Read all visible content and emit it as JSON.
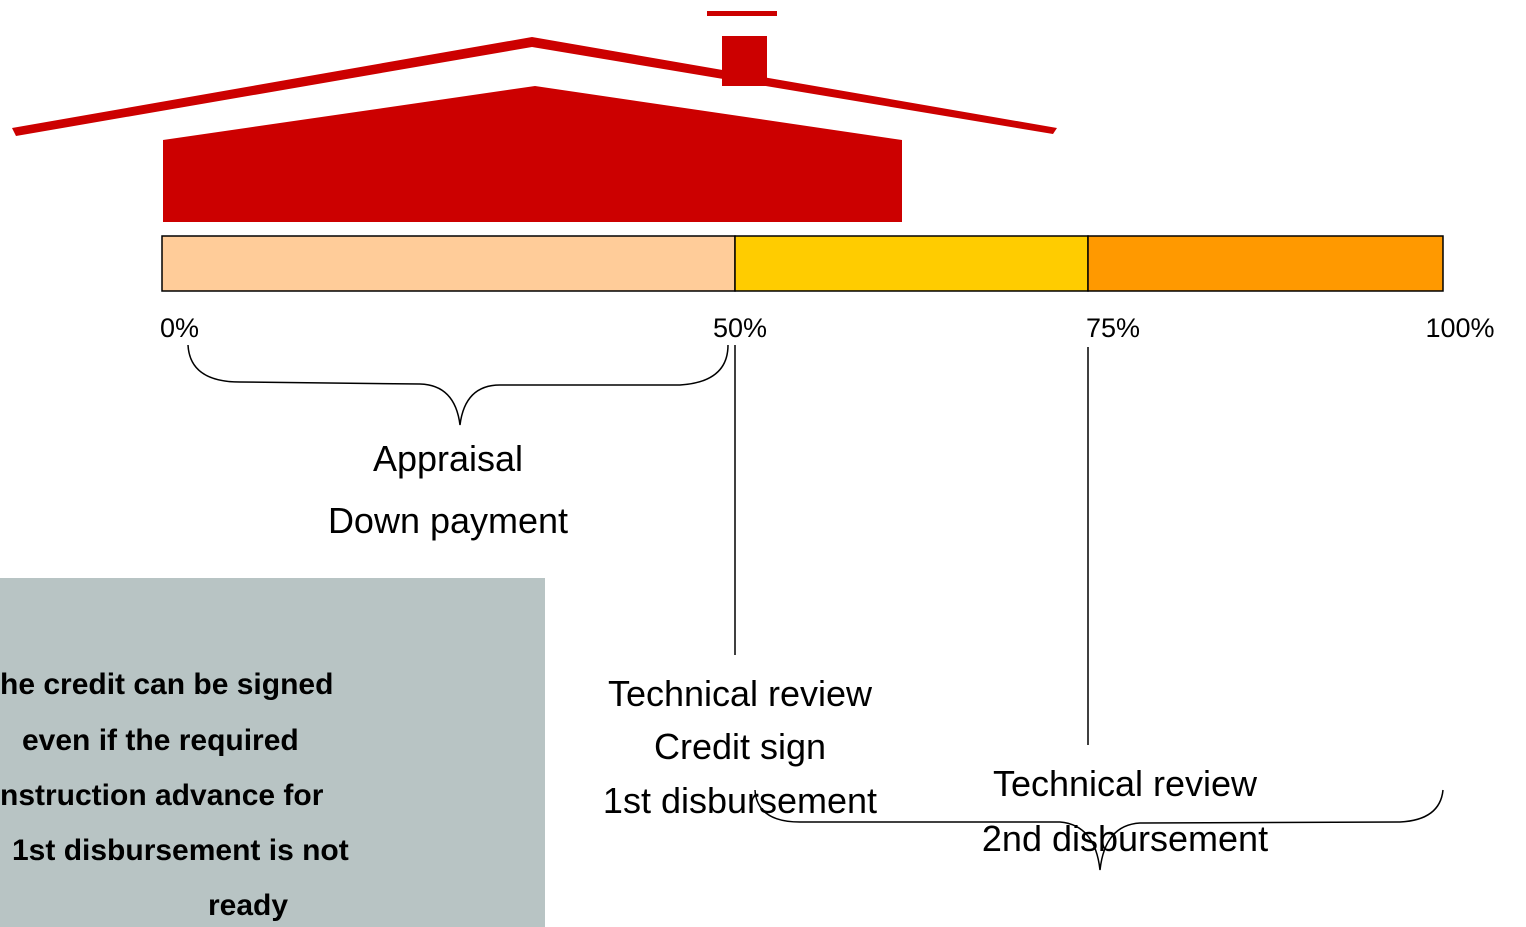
{
  "scale": {
    "labels": [
      "0%",
      "50%",
      "75%",
      "100%"
    ]
  },
  "stage_1": {
    "lines": [
      "Appraisal",
      "Down payment"
    ]
  },
  "stage_2": {
    "lines": [
      "Technical review",
      "Credit sign",
      "1st disbursement"
    ]
  },
  "stage_3": {
    "lines": [
      "Technical review",
      "2nd disbursement"
    ]
  },
  "note": {
    "lines": [
      "he credit can be signed",
      "even if the required",
      "nstruction advance for",
      "1st disbursement is not",
      "ready"
    ]
  }
}
